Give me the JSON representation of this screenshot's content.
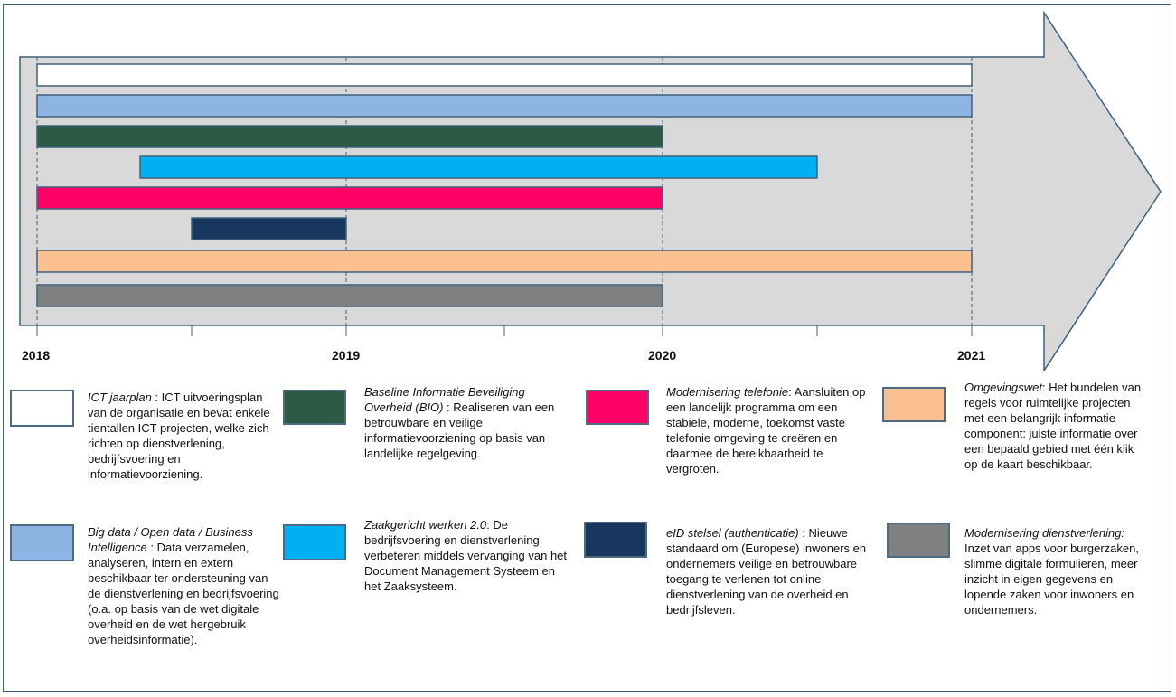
{
  "timeline": {
    "years": [
      "2018",
      "2019",
      "2020",
      "2021"
    ],
    "quarter_ticks": true
  },
  "bars": [
    {
      "project": "ICT jaarplan",
      "start": "2018",
      "end": "2021",
      "color": "#ffffff"
    },
    {
      "project": "Big data / Open data / Business Intelligence",
      "start": "2018",
      "end": "2021",
      "color": "#8eb4e3"
    },
    {
      "project": "Baseline Informatie Beveiliging Overheid (BIO)",
      "start": "2018",
      "end": "2020",
      "color": "#2b5a45"
    },
    {
      "project": "Zaakgericht werken 2.0",
      "start": "2018-05",
      "end": "2020-07",
      "color": "#00b0f0"
    },
    {
      "project": "Modernisering telefonie",
      "start": "2018",
      "end": "2020",
      "color": "#ff0066"
    },
    {
      "project": "eID stelsel (authenticatie)",
      "start": "2018-07",
      "end": "2019",
      "color": "#17375e"
    },
    {
      "project": "Omgevingswet",
      "start": "2018",
      "end": "2021",
      "color": "#fac090"
    },
    {
      "project": "Modernisering dienstverlening",
      "start": "2018",
      "end": "2020",
      "color": "#808080"
    }
  ],
  "legend": [
    {
      "title": "ICT jaarplan",
      "sep": " : ",
      "text": "ICT uitvoeringsplan van de organisatie en bevat enkele tientallen ICT projecten, welke zich richten op dienstverlening, bedrijfsvoering en informatievoorziening.",
      "color": "#ffffff"
    },
    {
      "title": "Baseline Informatie Beveiliging Overheid (BIO)",
      "sep": " : ",
      "text": "Realiseren van een betrouwbare en veilige informatievoorziening op basis van landelijke regelgeving.",
      "color": "#2b5a45"
    },
    {
      "title": "Modernisering telefonie",
      "sep": ": ",
      "text": "Aansluiten op een landelijk programma om een stabiele, moderne, toekomst vaste telefonie omgeving te creëren en daarmee de bereikbaarheid te vergroten.",
      "color": "#ff0066"
    },
    {
      "title": "Omgevingswet",
      "sep": ": ",
      "text": "Het bundelen van regels voor ruimtelijke projecten met een belangrijk informatie component: juiste informatie over een bepaald gebied met één klik op de kaart beschikbaar.",
      "color": "#fac090"
    },
    {
      "title": "Big data / Open data / Business Intelligence",
      "sep": " : ",
      "text": "Data verzamelen, analyseren, intern en extern beschikbaar ter ondersteuning van de dienstverlening en bedrijfsvoering (o.a. op basis van de wet digitale overheid en de wet hergebruik overheidsinformatie).",
      "color": "#8eb4e3"
    },
    {
      "title": "Zaakgericht werken 2.0",
      "sep": ": ",
      "text": "De bedrijfsvoering en dienstverlening verbeteren middels vervanging van het Document Management Systeem en het Zaaksysteem.",
      "color": "#00b0f0"
    },
    {
      "title": "eID stelsel (authenticatie)",
      "sep": " : ",
      "text": "Nieuwe standaard om (Europese) inwoners en ondernemers veilige en betrouwbare toegang te verlenen tot online dienstverlening van de overheid en bedrijfsleven.",
      "color": "#17375e"
    },
    {
      "title": "Modernisering dienstverlening:",
      "sep": " ",
      "text": "Inzet van apps voor burgerzaken, slimme digitale formulieren, meer inzicht in eigen gegevens en lopende zaken voor inwoners en ondernemers.",
      "color": "#808080"
    }
  ]
}
